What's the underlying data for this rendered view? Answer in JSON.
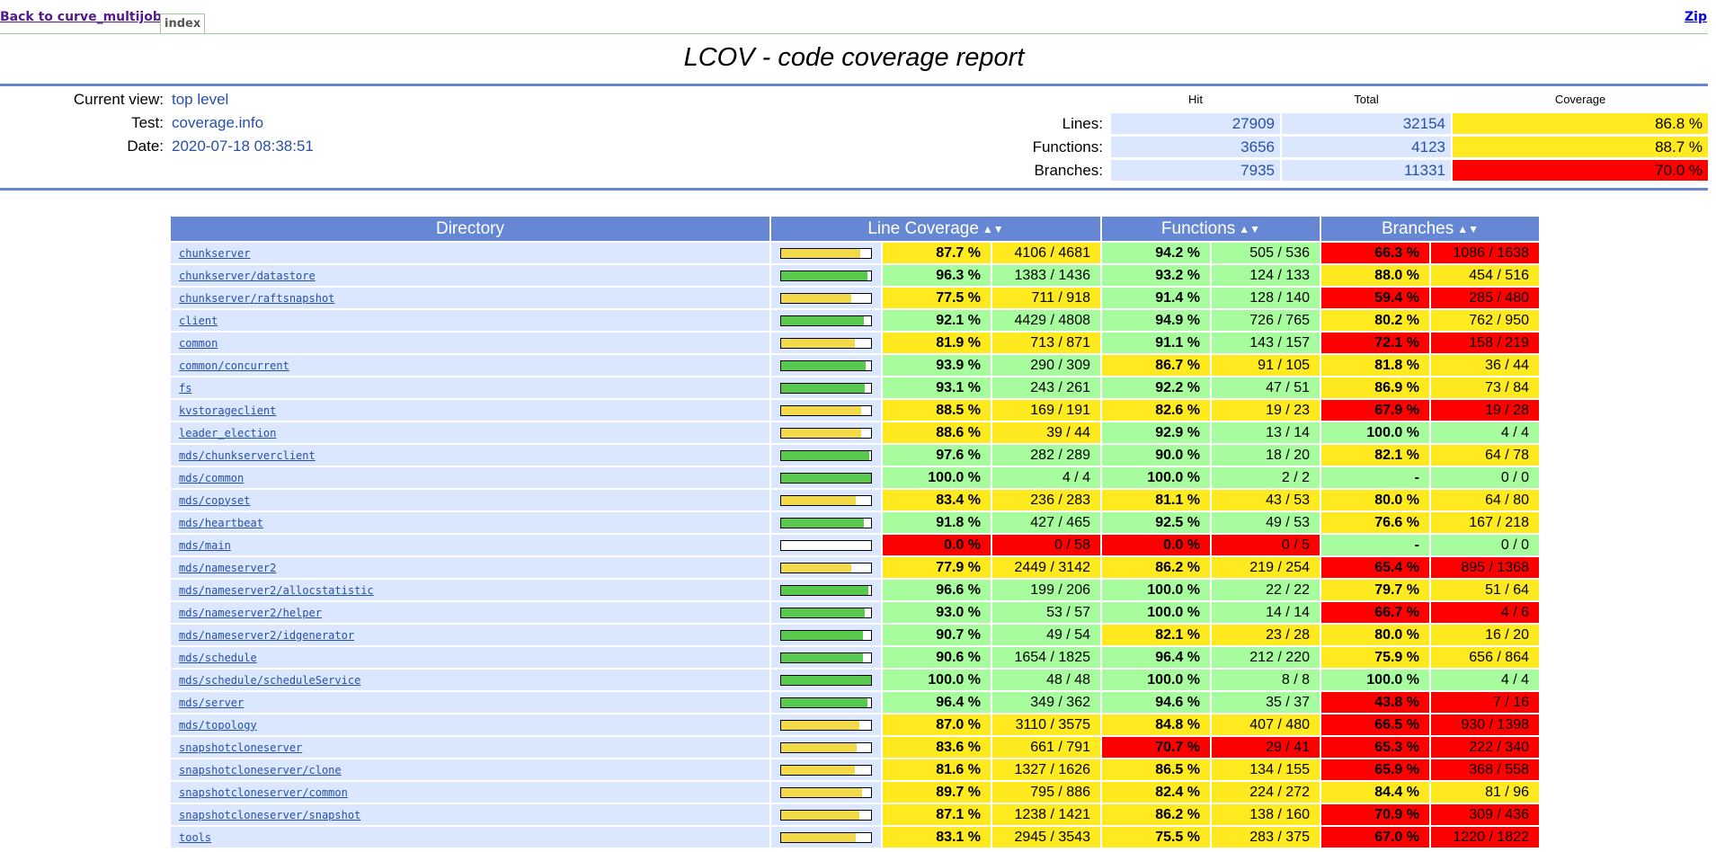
{
  "nav": {
    "back_label": "Back to curve_multijob",
    "tab_label": "index",
    "zip_label": "Zip"
  },
  "title": "LCOV - code coverage report",
  "info": {
    "current_view_label": "Current view:",
    "current_view": "top level",
    "test_label": "Test:",
    "test": "coverage.info",
    "date_label": "Date:",
    "date": "2020-07-18 08:38:51"
  },
  "summary": {
    "headers": [
      "Hit",
      "Total",
      "Coverage"
    ],
    "rows": [
      {
        "label": "Lines:",
        "hit": "27909",
        "total": "32154",
        "coverage": "86.8 %",
        "level": "med"
      },
      {
        "label": "Functions:",
        "hit": "3656",
        "total": "4123",
        "coverage": "88.7 %",
        "level": "med"
      },
      {
        "label": "Branches:",
        "hit": "7935",
        "total": "11331",
        "coverage": "70.0 %",
        "level": "lo"
      }
    ]
  },
  "table": {
    "headers": {
      "directory": "Directory",
      "lines": "Line Coverage",
      "functions": "Functions",
      "branches": "Branches"
    },
    "sort_icon": "sort-icon",
    "rows": [
      {
        "dir": "chunkserver",
        "line_pct": "87.7 %",
        "line_ratio": "4106 / 4681",
        "line_level": "med",
        "bar": 87.7,
        "func_pct": "94.2 %",
        "func_ratio": "505 / 536",
        "func_level": "hi",
        "br_pct": "66.3 %",
        "br_ratio": "1086 / 1638",
        "br_level": "lo"
      },
      {
        "dir": "chunkserver/datastore",
        "line_pct": "96.3 %",
        "line_ratio": "1383 / 1436",
        "line_level": "hi",
        "bar": 96.3,
        "func_pct": "93.2 %",
        "func_ratio": "124 / 133",
        "func_level": "hi",
        "br_pct": "88.0 %",
        "br_ratio": "454 / 516",
        "br_level": "med"
      },
      {
        "dir": "chunkserver/raftsnapshot",
        "line_pct": "77.5 %",
        "line_ratio": "711 / 918",
        "line_level": "med",
        "bar": 77.5,
        "func_pct": "91.4 %",
        "func_ratio": "128 / 140",
        "func_level": "hi",
        "br_pct": "59.4 %",
        "br_ratio": "285 / 480",
        "br_level": "lo"
      },
      {
        "dir": "client",
        "line_pct": "92.1 %",
        "line_ratio": "4429 / 4808",
        "line_level": "hi",
        "bar": 92.1,
        "func_pct": "94.9 %",
        "func_ratio": "726 / 765",
        "func_level": "hi",
        "br_pct": "80.2 %",
        "br_ratio": "762 / 950",
        "br_level": "med"
      },
      {
        "dir": "common",
        "line_pct": "81.9 %",
        "line_ratio": "713 / 871",
        "line_level": "med",
        "bar": 81.9,
        "func_pct": "91.1 %",
        "func_ratio": "143 / 157",
        "func_level": "hi",
        "br_pct": "72.1 %",
        "br_ratio": "158 / 219",
        "br_level": "lo"
      },
      {
        "dir": "common/concurrent",
        "line_pct": "93.9 %",
        "line_ratio": "290 / 309",
        "line_level": "hi",
        "bar": 93.9,
        "func_pct": "86.7 %",
        "func_ratio": "91 / 105",
        "func_level": "med",
        "br_pct": "81.8 %",
        "br_ratio": "36 / 44",
        "br_level": "med"
      },
      {
        "dir": "fs",
        "line_pct": "93.1 %",
        "line_ratio": "243 / 261",
        "line_level": "hi",
        "bar": 93.1,
        "func_pct": "92.2 %",
        "func_ratio": "47 / 51",
        "func_level": "hi",
        "br_pct": "86.9 %",
        "br_ratio": "73 / 84",
        "br_level": "med"
      },
      {
        "dir": "kvstorageclient",
        "line_pct": "88.5 %",
        "line_ratio": "169 / 191",
        "line_level": "med",
        "bar": 88.5,
        "func_pct": "82.6 %",
        "func_ratio": "19 / 23",
        "func_level": "med",
        "br_pct": "67.9 %",
        "br_ratio": "19 / 28",
        "br_level": "lo"
      },
      {
        "dir": "leader_election",
        "line_pct": "88.6 %",
        "line_ratio": "39 / 44",
        "line_level": "med",
        "bar": 88.6,
        "func_pct": "92.9 %",
        "func_ratio": "13 / 14",
        "func_level": "hi",
        "br_pct": "100.0 %",
        "br_ratio": "4 / 4",
        "br_level": "hi"
      },
      {
        "dir": "mds/chunkserverclient",
        "line_pct": "97.6 %",
        "line_ratio": "282 / 289",
        "line_level": "hi",
        "bar": 97.6,
        "func_pct": "90.0 %",
        "func_ratio": "18 / 20",
        "func_level": "hi",
        "br_pct": "82.1 %",
        "br_ratio": "64 / 78",
        "br_level": "med"
      },
      {
        "dir": "mds/common",
        "line_pct": "100.0 %",
        "line_ratio": "4 / 4",
        "line_level": "hi",
        "bar": 100,
        "func_pct": "100.0 %",
        "func_ratio": "2 / 2",
        "func_level": "hi",
        "br_pct": "-",
        "br_ratio": "0 / 0",
        "br_level": "hi"
      },
      {
        "dir": "mds/copyset",
        "line_pct": "83.4 %",
        "line_ratio": "236 / 283",
        "line_level": "med",
        "bar": 83.4,
        "func_pct": "81.1 %",
        "func_ratio": "43 / 53",
        "func_level": "med",
        "br_pct": "80.0 %",
        "br_ratio": "64 / 80",
        "br_level": "med"
      },
      {
        "dir": "mds/heartbeat",
        "line_pct": "91.8 %",
        "line_ratio": "427 / 465",
        "line_level": "hi",
        "bar": 91.8,
        "func_pct": "92.5 %",
        "func_ratio": "49 / 53",
        "func_level": "hi",
        "br_pct": "76.6 %",
        "br_ratio": "167 / 218",
        "br_level": "med"
      },
      {
        "dir": "mds/main",
        "line_pct": "0.0 %",
        "line_ratio": "0 / 58",
        "line_level": "lo",
        "bar": 0,
        "func_pct": "0.0 %",
        "func_ratio": "0 / 5",
        "func_level": "lo",
        "br_pct": "-",
        "br_ratio": "0 / 0",
        "br_level": "hi"
      },
      {
        "dir": "mds/nameserver2",
        "line_pct": "77.9 %",
        "line_ratio": "2449 / 3142",
        "line_level": "med",
        "bar": 77.9,
        "func_pct": "86.2 %",
        "func_ratio": "219 / 254",
        "func_level": "med",
        "br_pct": "65.4 %",
        "br_ratio": "895 / 1368",
        "br_level": "lo"
      },
      {
        "dir": "mds/nameserver2/allocstatistic",
        "line_pct": "96.6 %",
        "line_ratio": "199 / 206",
        "line_level": "hi",
        "bar": 96.6,
        "func_pct": "100.0 %",
        "func_ratio": "22 / 22",
        "func_level": "hi",
        "br_pct": "79.7 %",
        "br_ratio": "51 / 64",
        "br_level": "med"
      },
      {
        "dir": "mds/nameserver2/helper",
        "line_pct": "93.0 %",
        "line_ratio": "53 / 57",
        "line_level": "hi",
        "bar": 93.0,
        "func_pct": "100.0 %",
        "func_ratio": "14 / 14",
        "func_level": "hi",
        "br_pct": "66.7 %",
        "br_ratio": "4 / 6",
        "br_level": "lo"
      },
      {
        "dir": "mds/nameserver2/idgenerator",
        "line_pct": "90.7 %",
        "line_ratio": "49 / 54",
        "line_level": "hi",
        "bar": 90.7,
        "func_pct": "82.1 %",
        "func_ratio": "23 / 28",
        "func_level": "med",
        "br_pct": "80.0 %",
        "br_ratio": "16 / 20",
        "br_level": "med"
      },
      {
        "dir": "mds/schedule",
        "line_pct": "90.6 %",
        "line_ratio": "1654 / 1825",
        "line_level": "hi",
        "bar": 90.6,
        "func_pct": "96.4 %",
        "func_ratio": "212 / 220",
        "func_level": "hi",
        "br_pct": "75.9 %",
        "br_ratio": "656 / 864",
        "br_level": "med"
      },
      {
        "dir": "mds/schedule/scheduleService",
        "line_pct": "100.0 %",
        "line_ratio": "48 / 48",
        "line_level": "hi",
        "bar": 100,
        "func_pct": "100.0 %",
        "func_ratio": "8 / 8",
        "func_level": "hi",
        "br_pct": "100.0 %",
        "br_ratio": "4 / 4",
        "br_level": "hi"
      },
      {
        "dir": "mds/server",
        "line_pct": "96.4 %",
        "line_ratio": "349 / 362",
        "line_level": "hi",
        "bar": 96.4,
        "func_pct": "94.6 %",
        "func_ratio": "35 / 37",
        "func_level": "hi",
        "br_pct": "43.8 %",
        "br_ratio": "7 / 16",
        "br_level": "lo"
      },
      {
        "dir": "mds/topology",
        "line_pct": "87.0 %",
        "line_ratio": "3110 / 3575",
        "line_level": "med",
        "bar": 87.0,
        "func_pct": "84.8 %",
        "func_ratio": "407 / 480",
        "func_level": "med",
        "br_pct": "66.5 %",
        "br_ratio": "930 / 1398",
        "br_level": "lo"
      },
      {
        "dir": "snapshotcloneserver",
        "line_pct": "83.6 %",
        "line_ratio": "661 / 791",
        "line_level": "med",
        "bar": 83.6,
        "func_pct": "70.7 %",
        "func_ratio": "29 / 41",
        "func_level": "lo",
        "br_pct": "65.3 %",
        "br_ratio": "222 / 340",
        "br_level": "lo"
      },
      {
        "dir": "snapshotcloneserver/clone",
        "line_pct": "81.6 %",
        "line_ratio": "1327 / 1626",
        "line_level": "med",
        "bar": 81.6,
        "func_pct": "86.5 %",
        "func_ratio": "134 / 155",
        "func_level": "med",
        "br_pct": "65.9 %",
        "br_ratio": "368 / 558",
        "br_level": "lo"
      },
      {
        "dir": "snapshotcloneserver/common",
        "line_pct": "89.7 %",
        "line_ratio": "795 / 886",
        "line_level": "med",
        "bar": 89.7,
        "func_pct": "82.4 %",
        "func_ratio": "224 / 272",
        "func_level": "med",
        "br_pct": "84.4 %",
        "br_ratio": "81 / 96",
        "br_level": "med"
      },
      {
        "dir": "snapshotcloneserver/snapshot",
        "line_pct": "87.1 %",
        "line_ratio": "1238 / 1421",
        "line_level": "med",
        "bar": 87.1,
        "func_pct": "86.2 %",
        "func_ratio": "138 / 160",
        "func_level": "med",
        "br_pct": "70.9 %",
        "br_ratio": "309 / 436",
        "br_level": "lo"
      },
      {
        "dir": "tools",
        "line_pct": "83.1 %",
        "line_ratio": "2945 / 3543",
        "line_level": "med",
        "bar": 83.1,
        "func_pct": "75.5 %",
        "func_ratio": "283 / 375",
        "func_level": "med",
        "br_pct": "67.0 %",
        "br_ratio": "1220 / 1822",
        "br_level": "lo"
      }
    ]
  },
  "colors": {
    "hi": "#a7fc9d",
    "med": "#ffea20",
    "lo": "#ff0000",
    "bar_hi": "#56c94e",
    "bar_med": "#f2d94a",
    "header_bg": "#6688d4",
    "cell_bg": "#dae7fe"
  }
}
